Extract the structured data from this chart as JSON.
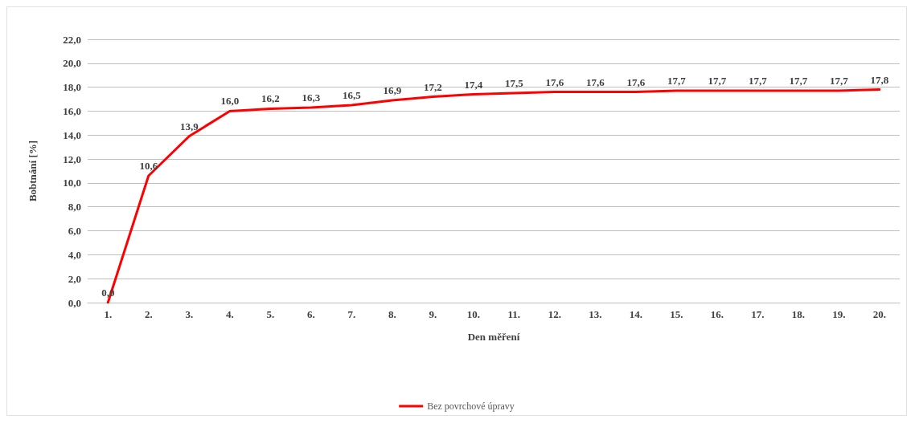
{
  "chart_data": {
    "type": "line",
    "xlabel": "Den měření",
    "ylabel": "Bobtnání [%]",
    "categories": [
      "1.",
      "2.",
      "3.",
      "4.",
      "5.",
      "6.",
      "7.",
      "8.",
      "9.",
      "10.",
      "11.",
      "12.",
      "13.",
      "14.",
      "15.",
      "16.",
      "17.",
      "18.",
      "19.",
      "20."
    ],
    "series": [
      {
        "name": "Bez povrchové úpravy",
        "color": "#ff0000",
        "values": [
          0.0,
          10.6,
          13.9,
          16.0,
          16.2,
          16.3,
          16.5,
          16.9,
          17.2,
          17.4,
          17.5,
          17.6,
          17.6,
          17.6,
          17.7,
          17.7,
          17.7,
          17.7,
          17.7,
          17.8
        ],
        "value_labels": [
          "0,0",
          "10,6",
          "13,9",
          "16,0",
          "16,2",
          "16,3",
          "16,5",
          "16,9",
          "17,2",
          "17,4",
          "17,5",
          "17,6",
          "17,6",
          "17,6",
          "17,7",
          "17,7",
          "17,7",
          "17,7",
          "17,7",
          "17,8"
        ]
      }
    ],
    "ylim": [
      0,
      22
    ],
    "yticks": [
      {
        "value": 0,
        "label": "0,0"
      },
      {
        "value": 2,
        "label": "2,0"
      },
      {
        "value": 4,
        "label": "4,0"
      },
      {
        "value": 6,
        "label": "6,0"
      },
      {
        "value": 8,
        "label": "8,0"
      },
      {
        "value": 10,
        "label": "10,0"
      },
      {
        "value": 12,
        "label": "12,0"
      },
      {
        "value": 14,
        "label": "14,0"
      },
      {
        "value": 16,
        "label": "16,0"
      },
      {
        "value": 18,
        "label": "18,0"
      },
      {
        "value": 20,
        "label": "20,0"
      },
      {
        "value": 22,
        "label": "22,0"
      }
    ],
    "grid": "y",
    "legend": "bottom",
    "marker": "none",
    "line_style": "solid"
  }
}
